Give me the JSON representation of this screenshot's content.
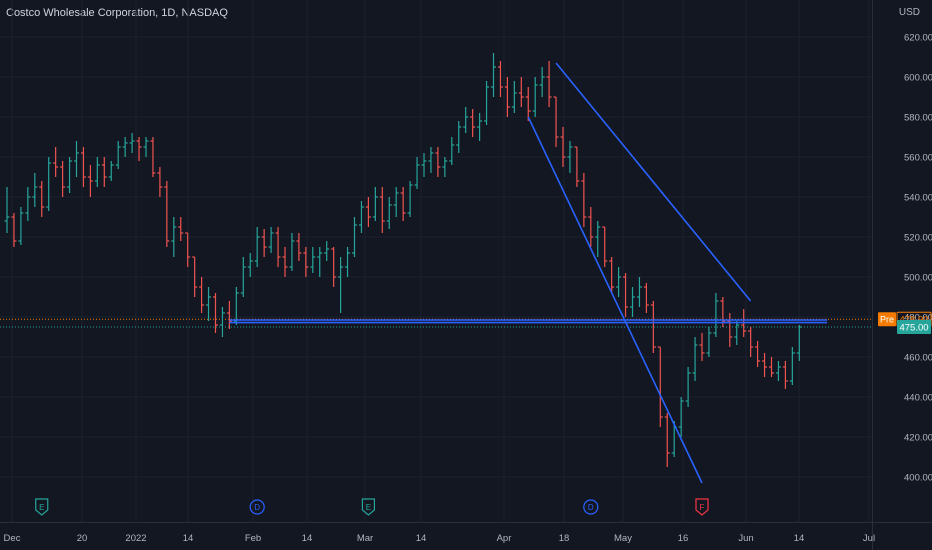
{
  "header": {
    "title": "Costco Wholesale Corporation, 1D, NASDAQ",
    "currency": "USD"
  },
  "chart_data": {
    "type": "ohlc",
    "title": "Costco Wholesale Corporation, 1D, NASDAQ",
    "ylim": [
      390,
      625
    ],
    "y_ticks": [
      400,
      420,
      440,
      460,
      480,
      500,
      520,
      540,
      560,
      580,
      600,
      620
    ],
    "y_tick_labels": [
      "400.00",
      "420.00",
      "440.00",
      "460.00",
      "480.00",
      "500.00",
      "520.00",
      "540.00",
      "560.00",
      "580.00",
      "600.00",
      "620.00"
    ],
    "x_ticks": [
      "Dec",
      "20",
      "2022",
      "14",
      "Feb",
      "14",
      "Mar",
      "14",
      "Apr",
      "18",
      "May",
      "16",
      "Jun",
      "14",
      "Jul"
    ],
    "grid": true,
    "colors": {
      "up": "#26a69a",
      "down": "#ef5350",
      "trendline": "#2962ff",
      "pre": "#f57c00",
      "last": "#26a69a"
    },
    "prices": {
      "pre": {
        "label": "Pre",
        "value": 478.9,
        "value_text": "478.90"
      },
      "last": {
        "value": 475.0,
        "value_text": "475.00"
      }
    },
    "series": [
      {
        "type": "ohlc",
        "values": [
          {
            "o": 528,
            "h": 545,
            "l": 522,
            "c": 530
          },
          {
            "o": 530,
            "h": 532,
            "l": 515,
            "c": 518
          },
          {
            "o": 518,
            "h": 535,
            "l": 516,
            "c": 532
          },
          {
            "o": 532,
            "h": 545,
            "l": 528,
            "c": 540
          },
          {
            "o": 540,
            "h": 552,
            "l": 535,
            "c": 545
          },
          {
            "o": 545,
            "h": 548,
            "l": 530,
            "c": 535
          },
          {
            "o": 535,
            "h": 560,
            "l": 533,
            "c": 557
          },
          {
            "o": 557,
            "h": 565,
            "l": 550,
            "c": 555
          },
          {
            "o": 555,
            "h": 558,
            "l": 540,
            "c": 545
          },
          {
            "o": 545,
            "h": 560,
            "l": 542,
            "c": 558
          },
          {
            "o": 558,
            "h": 568,
            "l": 550,
            "c": 562
          },
          {
            "o": 562,
            "h": 565,
            "l": 545,
            "c": 550
          },
          {
            "o": 550,
            "h": 556,
            "l": 540,
            "c": 548
          },
          {
            "o": 548,
            "h": 560,
            "l": 545,
            "c": 556
          },
          {
            "o": 556,
            "h": 560,
            "l": 545,
            "c": 550
          },
          {
            "o": 550,
            "h": 558,
            "l": 548,
            "c": 556
          },
          {
            "o": 556,
            "h": 568,
            "l": 554,
            "c": 565
          },
          {
            "o": 565,
            "h": 570,
            "l": 560,
            "c": 567
          },
          {
            "o": 567,
            "h": 572,
            "l": 562,
            "c": 568
          },
          {
            "o": 568,
            "h": 570,
            "l": 558,
            "c": 565
          },
          {
            "o": 565,
            "h": 570,
            "l": 560,
            "c": 568
          },
          {
            "o": 568,
            "h": 570,
            "l": 550,
            "c": 552
          },
          {
            "o": 552,
            "h": 555,
            "l": 540,
            "c": 545
          },
          {
            "o": 545,
            "h": 548,
            "l": 515,
            "c": 518
          },
          {
            "o": 518,
            "h": 530,
            "l": 510,
            "c": 525
          },
          {
            "o": 525,
            "h": 530,
            "l": 518,
            "c": 522
          },
          {
            "o": 522,
            "h": 522,
            "l": 505,
            "c": 510
          },
          {
            "o": 510,
            "h": 510,
            "l": 490,
            "c": 495
          },
          {
            "o": 495,
            "h": 500,
            "l": 482,
            "c": 486
          },
          {
            "o": 486,
            "h": 495,
            "l": 478,
            "c": 490
          },
          {
            "o": 490,
            "h": 492,
            "l": 472,
            "c": 476
          },
          {
            "o": 476,
            "h": 485,
            "l": 470,
            "c": 482
          },
          {
            "o": 482,
            "h": 488,
            "l": 474,
            "c": 478
          },
          {
            "o": 478,
            "h": 495,
            "l": 476,
            "c": 492
          },
          {
            "o": 492,
            "h": 510,
            "l": 490,
            "c": 505
          },
          {
            "o": 505,
            "h": 512,
            "l": 500,
            "c": 508
          },
          {
            "o": 508,
            "h": 525,
            "l": 505,
            "c": 520
          },
          {
            "o": 520,
            "h": 524,
            "l": 510,
            "c": 515
          },
          {
            "o": 515,
            "h": 525,
            "l": 512,
            "c": 522
          },
          {
            "o": 522,
            "h": 525,
            "l": 505,
            "c": 510
          },
          {
            "o": 510,
            "h": 515,
            "l": 500,
            "c": 505
          },
          {
            "o": 505,
            "h": 522,
            "l": 503,
            "c": 518
          },
          {
            "o": 518,
            "h": 522,
            "l": 508,
            "c": 512
          },
          {
            "o": 512,
            "h": 515,
            "l": 500,
            "c": 505
          },
          {
            "o": 505,
            "h": 515,
            "l": 502,
            "c": 510
          },
          {
            "o": 510,
            "h": 515,
            "l": 500,
            "c": 512
          },
          {
            "o": 512,
            "h": 518,
            "l": 508,
            "c": 514
          },
          {
            "o": 514,
            "h": 515,
            "l": 495,
            "c": 500
          },
          {
            "o": 500,
            "h": 510,
            "l": 482,
            "c": 505
          },
          {
            "o": 505,
            "h": 515,
            "l": 500,
            "c": 512
          },
          {
            "o": 512,
            "h": 530,
            "l": 510,
            "c": 526
          },
          {
            "o": 526,
            "h": 538,
            "l": 522,
            "c": 535
          },
          {
            "o": 535,
            "h": 540,
            "l": 525,
            "c": 530
          },
          {
            "o": 530,
            "h": 545,
            "l": 528,
            "c": 540
          },
          {
            "o": 540,
            "h": 545,
            "l": 522,
            "c": 528
          },
          {
            "o": 528,
            "h": 540,
            "l": 524,
            "c": 536
          },
          {
            "o": 536,
            "h": 545,
            "l": 530,
            "c": 542
          },
          {
            "o": 542,
            "h": 545,
            "l": 528,
            "c": 532
          },
          {
            "o": 532,
            "h": 548,
            "l": 530,
            "c": 546
          },
          {
            "o": 546,
            "h": 560,
            "l": 544,
            "c": 556
          },
          {
            "o": 556,
            "h": 562,
            "l": 550,
            "c": 558
          },
          {
            "o": 558,
            "h": 565,
            "l": 552,
            "c": 562
          },
          {
            "o": 562,
            "h": 565,
            "l": 550,
            "c": 555
          },
          {
            "o": 555,
            "h": 560,
            "l": 550,
            "c": 558
          },
          {
            "o": 558,
            "h": 570,
            "l": 556,
            "c": 566
          },
          {
            "o": 566,
            "h": 578,
            "l": 562,
            "c": 575
          },
          {
            "o": 575,
            "h": 585,
            "l": 572,
            "c": 580
          },
          {
            "o": 580,
            "h": 584,
            "l": 570,
            "c": 575
          },
          {
            "o": 575,
            "h": 582,
            "l": 568,
            "c": 578
          },
          {
            "o": 578,
            "h": 598,
            "l": 576,
            "c": 595
          },
          {
            "o": 595,
            "h": 612,
            "l": 590,
            "c": 605
          },
          {
            "o": 605,
            "h": 608,
            "l": 590,
            "c": 595
          },
          {
            "o": 595,
            "h": 600,
            "l": 580,
            "c": 585
          },
          {
            "o": 585,
            "h": 598,
            "l": 582,
            "c": 592
          },
          {
            "o": 592,
            "h": 600,
            "l": 585,
            "c": 590
          },
          {
            "o": 590,
            "h": 595,
            "l": 578,
            "c": 583
          },
          {
            "o": 583,
            "h": 600,
            "l": 580,
            "c": 596
          },
          {
            "o": 596,
            "h": 605,
            "l": 590,
            "c": 600
          },
          {
            "o": 600,
            "h": 608,
            "l": 585,
            "c": 590
          },
          {
            "o": 590,
            "h": 590,
            "l": 565,
            "c": 570
          },
          {
            "o": 570,
            "h": 575,
            "l": 555,
            "c": 560
          },
          {
            "o": 560,
            "h": 568,
            "l": 552,
            "c": 565
          },
          {
            "o": 565,
            "h": 565,
            "l": 545,
            "c": 548
          },
          {
            "o": 548,
            "h": 552,
            "l": 525,
            "c": 530
          },
          {
            "o": 530,
            "h": 535,
            "l": 515,
            "c": 520
          },
          {
            "o": 520,
            "h": 528,
            "l": 510,
            "c": 525
          },
          {
            "o": 525,
            "h": 525,
            "l": 505,
            "c": 508
          },
          {
            "o": 508,
            "h": 510,
            "l": 492,
            "c": 495
          },
          {
            "o": 495,
            "h": 505,
            "l": 490,
            "c": 500
          },
          {
            "o": 500,
            "h": 502,
            "l": 480,
            "c": 485
          },
          {
            "o": 485,
            "h": 495,
            "l": 480,
            "c": 490
          },
          {
            "o": 490,
            "h": 500,
            "l": 485,
            "c": 495
          },
          {
            "o": 495,
            "h": 497,
            "l": 482,
            "c": 486
          },
          {
            "o": 486,
            "h": 488,
            "l": 462,
            "c": 465
          },
          {
            "o": 465,
            "h": 465,
            "l": 425,
            "c": 430
          },
          {
            "o": 430,
            "h": 432,
            "l": 405,
            "c": 412
          },
          {
            "o": 412,
            "h": 428,
            "l": 410,
            "c": 425
          },
          {
            "o": 425,
            "h": 440,
            "l": 420,
            "c": 438
          },
          {
            "o": 438,
            "h": 455,
            "l": 435,
            "c": 452
          },
          {
            "o": 452,
            "h": 470,
            "l": 448,
            "c": 466
          },
          {
            "o": 466,
            "h": 472,
            "l": 458,
            "c": 462
          },
          {
            "o": 462,
            "h": 475,
            "l": 460,
            "c": 472
          },
          {
            "o": 472,
            "h": 492,
            "l": 470,
            "c": 488
          },
          {
            "o": 488,
            "h": 490,
            "l": 475,
            "c": 478
          },
          {
            "o": 478,
            "h": 482,
            "l": 465,
            "c": 470
          },
          {
            "o": 470,
            "h": 478,
            "l": 466,
            "c": 476
          },
          {
            "o": 476,
            "h": 484,
            "l": 470,
            "c": 473
          },
          {
            "o": 473,
            "h": 475,
            "l": 460,
            "c": 465
          },
          {
            "o": 465,
            "h": 468,
            "l": 455,
            "c": 458
          },
          {
            "o": 458,
            "h": 462,
            "l": 450,
            "c": 455
          },
          {
            "o": 455,
            "h": 460,
            "l": 450,
            "c": 452
          },
          {
            "o": 452,
            "h": 458,
            "l": 448,
            "c": 455
          },
          {
            "o": 455,
            "h": 458,
            "l": 444,
            "c": 448
          },
          {
            "o": 448,
            "h": 465,
            "l": 446,
            "c": 462
          },
          {
            "o": 462,
            "h": 476,
            "l": 458,
            "c": 475
          }
        ]
      }
    ],
    "trendlines": [
      {
        "from": [
          79,
          607
        ],
        "to": [
          107,
          488
        ]
      },
      {
        "from": [
          75,
          580
        ],
        "to": [
          100,
          397
        ]
      },
      {
        "from": [
          32,
          478.5
        ],
        "to": [
          118,
          478.5
        ]
      },
      {
        "from": [
          32,
          477.2
        ],
        "to": [
          118,
          477.2
        ]
      }
    ],
    "events": [
      {
        "label": "E",
        "kind": "earnings",
        "index": 5
      },
      {
        "label": "D",
        "kind": "dividend",
        "index": 36
      },
      {
        "label": "E",
        "kind": "earnings",
        "index": 52
      },
      {
        "label": "D",
        "kind": "dividend",
        "index": 84
      },
      {
        "label": "F",
        "kind": "flag",
        "index": 100
      }
    ]
  }
}
